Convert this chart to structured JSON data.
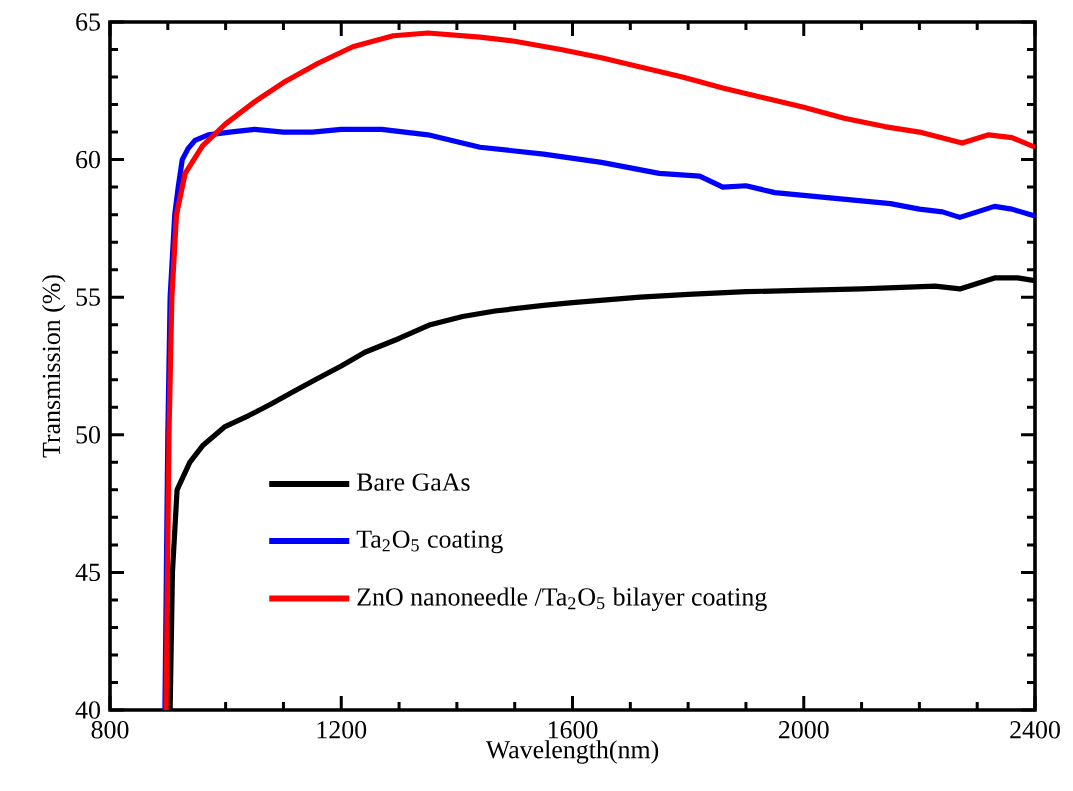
{
  "chart_data": {
    "type": "line",
    "xlabel": "Wavelength(nm)",
    "ylabel": "Transmission (%)",
    "xlim": [
      800,
      2400
    ],
    "ylim": [
      40,
      65
    ],
    "xticks": [
      800,
      1200,
      1600,
      2000,
      2400
    ],
    "yticks": [
      40,
      45,
      50,
      55,
      60,
      65
    ],
    "grid": false,
    "legend": "bottom left",
    "marker": "none",
    "line_style": "solid",
    "series": [
      {
        "name": "Bare GaAs",
        "color": "#000000",
        "x": [
          904,
          908,
          916,
          938,
          960,
          999,
          1040,
          1077,
          1120,
          1155,
          1200,
          1241,
          1300,
          1354,
          1410,
          1466,
          1550,
          1600,
          1717,
          1800,
          1900,
          1994,
          2100,
          2227,
          2270,
          2300,
          2330,
          2370,
          2400
        ],
        "values": [
          40,
          45,
          48,
          49,
          49.6,
          50.3,
          50.7,
          51.1,
          51.6,
          52,
          52.5,
          53,
          53.5,
          54,
          54.3,
          54.5,
          54.7,
          54.8,
          55,
          55.1,
          55.2,
          55.25,
          55.3,
          55.4,
          55.3,
          55.5,
          55.7,
          55.7,
          55.6
        ]
      },
      {
        "name": "Ta$_{2}$O$_{5}$  coating",
        "color": "#0000ff",
        "x": [
          895,
          900,
          904,
          912,
          918,
          925,
          935,
          947,
          970,
          1007,
          1050,
          1100,
          1150,
          1200,
          1270,
          1350,
          1440,
          1550,
          1650,
          1750,
          1820,
          1860,
          1900,
          1950,
          2050,
          2150,
          2200,
          2240,
          2270,
          2300,
          2330,
          2360,
          2400
        ],
        "values": [
          40,
          50,
          55,
          58,
          59,
          60,
          60.4,
          60.7,
          60.9,
          61,
          61.1,
          61,
          61,
          61.1,
          61.1,
          60.9,
          60.45,
          60.2,
          59.9,
          59.5,
          59.4,
          59,
          59.05,
          58.8,
          58.6,
          58.4,
          58.2,
          58.1,
          57.9,
          58.1,
          58.3,
          58.2,
          57.95
        ]
      },
      {
        "name": "ZnO nanoneedle /Ta$_{2}$O$_{5}$ bilayer coating",
        "color": "#ff0000",
        "x": [
          897,
          902,
          907,
          915,
          930,
          960,
          1000,
          1050,
          1100,
          1160,
          1220,
          1290,
          1350,
          1440,
          1500,
          1580,
          1650,
          1730,
          1790,
          1860,
          1940,
          2000,
          2070,
          2140,
          2200,
          2274,
          2320,
          2360,
          2400
        ],
        "values": [
          40,
          50,
          55,
          58,
          59.5,
          60.5,
          61.3,
          62.1,
          62.8,
          63.5,
          64.1,
          64.5,
          64.6,
          64.45,
          64.3,
          64,
          63.7,
          63.3,
          63,
          62.6,
          62.2,
          61.9,
          61.5,
          61.2,
          61,
          60.6,
          60.9,
          60.8,
          60.45
        ]
      }
    ]
  }
}
